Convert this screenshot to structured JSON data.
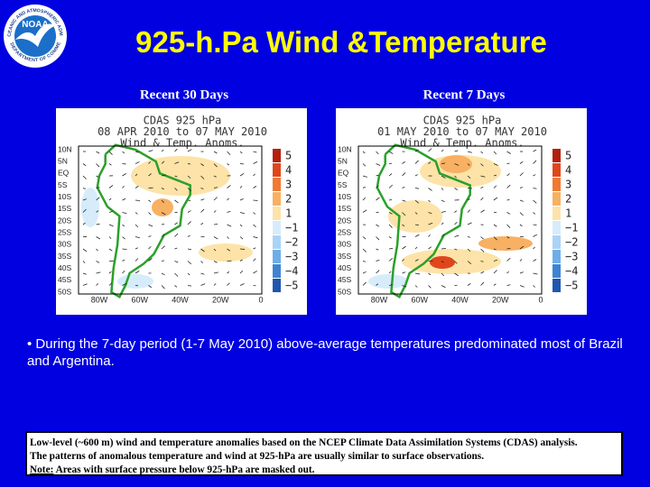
{
  "logo": {
    "name": "NOAA",
    "ring_top": "NATIONAL OCEANIC AND ATMOSPHERIC ADMINISTRATION",
    "ring_bottom": "U.S. DEPARTMENT OF COMMERCE"
  },
  "header": {
    "title": "925-h.Pa Wind &Temperature"
  },
  "maps": [
    {
      "caption": "Recent 30 Days",
      "lines": [
        "CDAS 925 hPa",
        "08 APR 2010 to 07 MAY 2010",
        "Wind & Temp. Anoms."
      ]
    },
    {
      "caption": "Recent 7 Days",
      "lines": [
        "CDAS 925 hPa",
        "01 MAY 2010 to 07 MAY 2010",
        "Wind & Temp. Anoms."
      ]
    }
  ],
  "map_axes": {
    "lat_labels": [
      "10N",
      "5N",
      "EQ",
      "5S",
      "10S",
      "15S",
      "20S",
      "25S",
      "30S",
      "35S",
      "40S",
      "45S",
      "50S"
    ],
    "lon_labels": [
      "80W",
      "60W",
      "40W",
      "20W",
      "0"
    ],
    "colorbar": {
      "labels": [
        "5",
        "4",
        "3",
        "2",
        "1",
        "−1",
        "−2",
        "−3",
        "−4",
        "−5"
      ],
      "colors": [
        "#b4200f",
        "#e0461c",
        "#f07a32",
        "#f8b062",
        "#fde3a8",
        "#d6ecfb",
        "#a9d4f5",
        "#6eaee8",
        "#3f84d2",
        "#1f57b0"
      ]
    }
  },
  "bullet": "• During the 7-day period (1-7 May 2010) above-average temperatures predominated most of Brazil and Argentina.",
  "footnote": {
    "line1": "Low-level (~600 m) wind and temperature anomalies based on the NCEP Climate Data Assimilation Systems (CDAS) analysis.",
    "line2": "The patterns of anomalous temperature and wind at 925-hPa are usually similar to surface observations.",
    "note_label": "Note:",
    "note_text": "Areas with surface pressure below 925-hPa are masked out."
  }
}
